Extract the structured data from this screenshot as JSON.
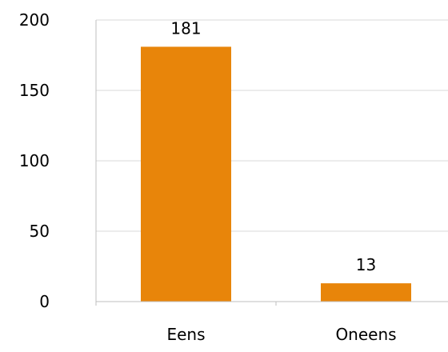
{
  "chart_data": {
    "type": "bar",
    "categories": [
      "Eens",
      "Oneens"
    ],
    "values": [
      181,
      13
    ],
    "data_labels": [
      "181",
      "13"
    ],
    "ylim": [
      0,
      200
    ],
    "y_ticks": [
      0,
      50,
      100,
      150,
      200
    ],
    "y_tick_labels": [
      "0",
      "50",
      "100",
      "150",
      "200"
    ],
    "grid": true,
    "legend": "none",
    "colors": {
      "bar": "#E8850A",
      "gridline": "#D9D9D9",
      "axis": "#BFBFBF"
    }
  }
}
